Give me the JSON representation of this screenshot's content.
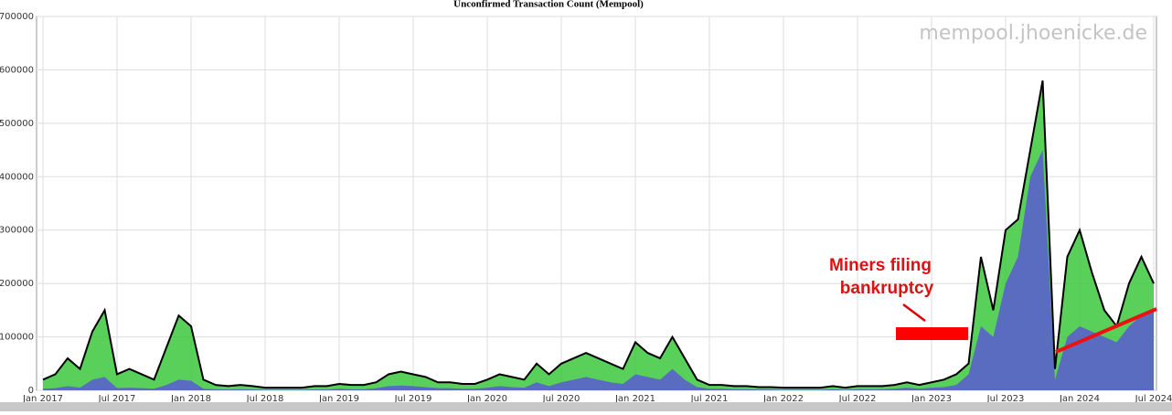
{
  "chart_data": {
    "type": "area",
    "title": "Unconfirmed Transaction Count (Mempool)",
    "watermark": "mempool.jhoenicke.de",
    "annotation": [
      "Miners filing",
      "bankruptcy"
    ],
    "x": [
      "2017-01",
      "2017-02",
      "2017-03",
      "2017-04",
      "2017-05",
      "2017-06",
      "2017-07",
      "2017-08",
      "2017-09",
      "2017-10",
      "2017-11",
      "2017-12",
      "2018-01",
      "2018-02",
      "2018-03",
      "2018-04",
      "2018-05",
      "2018-06",
      "2018-07",
      "2018-08",
      "2018-09",
      "2018-10",
      "2018-11",
      "2018-12",
      "2019-01",
      "2019-02",
      "2019-03",
      "2019-04",
      "2019-05",
      "2019-06",
      "2019-07",
      "2019-08",
      "2019-09",
      "2019-10",
      "2019-11",
      "2019-12",
      "2020-01",
      "2020-02",
      "2020-03",
      "2020-04",
      "2020-05",
      "2020-06",
      "2020-07",
      "2020-08",
      "2020-09",
      "2020-10",
      "2020-11",
      "2020-12",
      "2021-01",
      "2021-02",
      "2021-03",
      "2021-04",
      "2021-05",
      "2021-06",
      "2021-07",
      "2021-08",
      "2021-09",
      "2021-10",
      "2021-11",
      "2021-12",
      "2022-01",
      "2022-02",
      "2022-03",
      "2022-04",
      "2022-05",
      "2022-06",
      "2022-07",
      "2022-08",
      "2022-09",
      "2022-10",
      "2022-11",
      "2022-12",
      "2023-01",
      "2023-02",
      "2023-03",
      "2023-04",
      "2023-05",
      "2023-06",
      "2023-07",
      "2023-08",
      "2023-09",
      "2023-10",
      "2023-11",
      "2023-12",
      "2024-01",
      "2024-02",
      "2024-03",
      "2024-04",
      "2024-05",
      "2024-06",
      "2024-07"
    ],
    "series": [
      {
        "color": "#3cc83c",
        "line": "#000000",
        "values": [
          20000,
          30000,
          60000,
          40000,
          110000,
          150000,
          30000,
          40000,
          30000,
          20000,
          80000,
          140000,
          120000,
          20000,
          10000,
          8000,
          10000,
          8000,
          5000,
          5000,
          5000,
          5000,
          8000,
          8000,
          12000,
          10000,
          10000,
          15000,
          30000,
          35000,
          30000,
          25000,
          15000,
          15000,
          12000,
          12000,
          20000,
          30000,
          25000,
          20000,
          50000,
          30000,
          50000,
          60000,
          70000,
          60000,
          50000,
          40000,
          90000,
          70000,
          60000,
          100000,
          60000,
          20000,
          10000,
          10000,
          8000,
          8000,
          6000,
          6000,
          5000,
          5000,
          5000,
          5000,
          8000,
          5000,
          8000,
          8000,
          8000,
          10000,
          15000,
          10000,
          15000,
          20000,
          30000,
          50000,
          250000,
          150000,
          300000,
          320000,
          450000,
          580000,
          40000,
          250000,
          300000,
          220000,
          150000,
          120000,
          200000,
          250000,
          200000
        ]
      },
      {
        "color": "#5a5ad2",
        "values": [
          3000,
          4000,
          8000,
          5000,
          20000,
          25000,
          4000,
          5000,
          4000,
          3000,
          10000,
          20000,
          18000,
          3000,
          2000,
          1500,
          2000,
          1500,
          1000,
          1000,
          1000,
          1000,
          1500,
          1500,
          3000,
          2000,
          2000,
          4000,
          8000,
          9000,
          8000,
          6000,
          4000,
          4000,
          3000,
          3000,
          5000,
          8000,
          6000,
          5000,
          15000,
          8000,
          15000,
          20000,
          25000,
          20000,
          15000,
          12000,
          30000,
          25000,
          20000,
          40000,
          20000,
          6000,
          3000,
          3000,
          2000,
          2000,
          1500,
          1500,
          1000,
          1000,
          1000,
          1000,
          2000,
          1000,
          2000,
          2000,
          2000,
          3000,
          5000,
          3000,
          5000,
          6000,
          10000,
          30000,
          120000,
          100000,
          200000,
          250000,
          400000,
          450000,
          20000,
          100000,
          120000,
          110000,
          100000,
          90000,
          120000,
          140000,
          150000
        ]
      }
    ],
    "xlim": [
      "2017-01",
      "2024-07"
    ],
    "xticks": [
      {
        "value": "2017-01",
        "label": "Jan 2017"
      },
      {
        "value": "2017-07",
        "label": "Jul 2017"
      },
      {
        "value": "2018-01",
        "label": "Jan 2018"
      },
      {
        "value": "2018-07",
        "label": "Jul 2018"
      },
      {
        "value": "2019-01",
        "label": "Jan 2019"
      },
      {
        "value": "2019-07",
        "label": "Jul 2019"
      },
      {
        "value": "2020-01",
        "label": "Jan 2020"
      },
      {
        "value": "2020-07",
        "label": "Jul 2020"
      },
      {
        "value": "2021-01",
        "label": "Jan 2021"
      },
      {
        "value": "2021-07",
        "label": "Jul 2021"
      },
      {
        "value": "2022-01",
        "label": "Jan 2022"
      },
      {
        "value": "2022-07",
        "label": "Jul 2022"
      },
      {
        "value": "2023-01",
        "label": "Jan 2023"
      },
      {
        "value": "2023-07",
        "label": "Jul 2023"
      },
      {
        "value": "2024-01",
        "label": "Jan 2024"
      },
      {
        "value": "2024-07",
        "label": "Jul 2024"
      }
    ],
    "ylim": [
      0,
      700000
    ],
    "yticks": [
      0,
      100000,
      200000,
      300000,
      400000,
      500000,
      600000,
      700000
    ],
    "grid": true
  }
}
